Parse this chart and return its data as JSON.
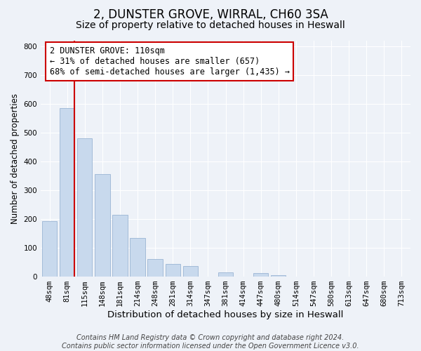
{
  "title": "2, DUNSTER GROVE, WIRRAL, CH60 3SA",
  "subtitle": "Size of property relative to detached houses in Heswall",
  "xlabel": "Distribution of detached houses by size in Heswall",
  "ylabel": "Number of detached properties",
  "categories": [
    "48sqm",
    "81sqm",
    "115sqm",
    "148sqm",
    "181sqm",
    "214sqm",
    "248sqm",
    "281sqm",
    "314sqm",
    "347sqm",
    "381sqm",
    "414sqm",
    "447sqm",
    "480sqm",
    "514sqm",
    "547sqm",
    "580sqm",
    "613sqm",
    "647sqm",
    "680sqm",
    "713sqm"
  ],
  "values": [
    193,
    585,
    480,
    355,
    215,
    133,
    60,
    44,
    37,
    0,
    16,
    0,
    12,
    5,
    0,
    0,
    0,
    0,
    0,
    0,
    0
  ],
  "bar_color": "#c8d9ed",
  "bar_edge_color": "#9ab5d4",
  "marker_line_color": "#cc0000",
  "ylim": [
    0,
    820
  ],
  "yticks": [
    0,
    100,
    200,
    300,
    400,
    500,
    600,
    700,
    800
  ],
  "annotation_line1": "2 DUNSTER GROVE: 110sqm",
  "annotation_line2": "← 31% of detached houses are smaller (657)",
  "annotation_line3": "68% of semi-detached houses are larger (1,435) →",
  "annotation_box_color": "#ffffff",
  "annotation_box_edge_color": "#cc0000",
  "footer_text": "Contains HM Land Registry data © Crown copyright and database right 2024.\nContains public sector information licensed under the Open Government Licence v3.0.",
  "background_color": "#eef2f8",
  "grid_color": "#ffffff",
  "title_fontsize": 12,
  "subtitle_fontsize": 10,
  "xlabel_fontsize": 9.5,
  "ylabel_fontsize": 8.5,
  "tick_fontsize": 7.5,
  "annotation_fontsize": 8.5,
  "footer_fontsize": 7
}
